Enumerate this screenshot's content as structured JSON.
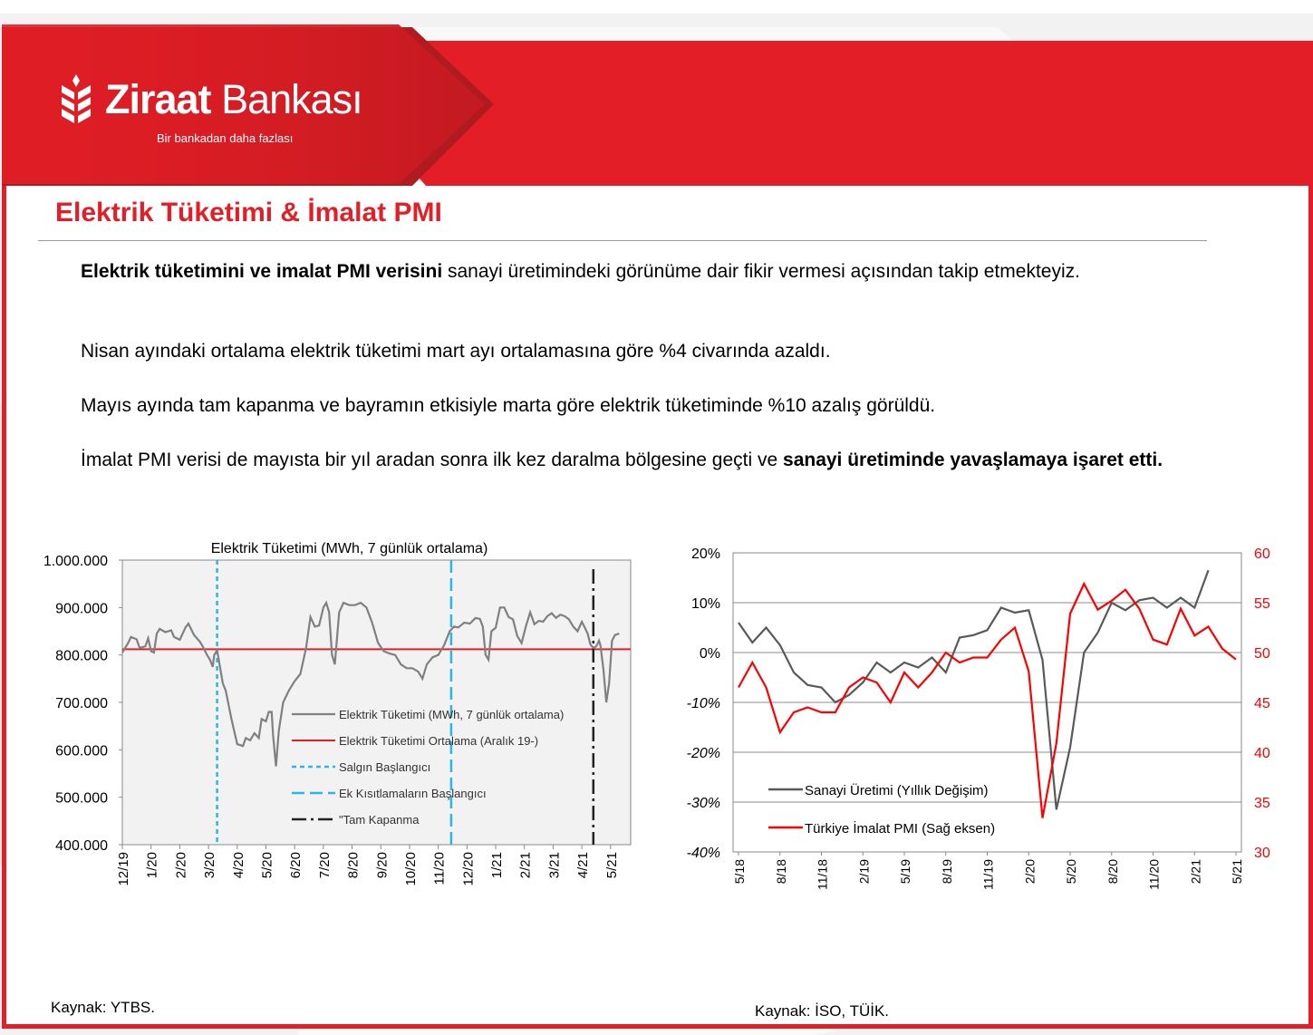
{
  "brand": {
    "name_bold": "Ziraat",
    "name_regular": "Bankası",
    "slogan": "Bir bankadan daha fazlası",
    "colors": {
      "red": "#e41e26",
      "dark_red": "#b01b20"
    }
  },
  "page_title": "Elektrik Tüketimi & İmalat PMI",
  "paragraphs": [
    {
      "bold_lead": "Elektrik tüketimini ve imalat PMI verisini",
      "text": " sanayi üretimindeki görünüme dair fikir vermesi açısından takip etmekteyiz."
    },
    {
      "text": "Nisan ayındaki ortalama elektrik tüketimi mart ayı ortalamasına göre %4 civarında azaldı."
    },
    {
      "text": "Mayıs ayında tam kapanma ve bayramın etkisiyle marta göre elektrik tüketiminde %10 azalış görüldü."
    },
    {
      "text": "İmalat PMI verisi de mayısta bir yıl aradan sonra ilk kez daralma bölgesine geçti ve ",
      "bold_tail": "sanayi üretiminde yavaşlamaya işaret etti",
      "tail": "."
    }
  ],
  "sources": {
    "left": "Kaynak: YTBS.",
    "right": "Kaynak: İSO, TÜİK."
  },
  "chart_data": [
    {
      "type": "line",
      "title": "Elektrik Tüketimi  (MWh, 7 günlük  ortalama)",
      "x_ticks": [
        "12/19",
        "1/20",
        "2/20",
        "3/20",
        "4/20",
        "5/20",
        "6/20",
        "7/20",
        "8/20",
        "9/20",
        "10/20",
        "11/20",
        "12/20",
        "1/21",
        "2/21",
        "3/21",
        "4/21",
        "5/21"
      ],
      "y_ticks": [
        "1.000.000",
        "900.000",
        "800.000",
        "700.000",
        "600.000",
        "500.000",
        "400.000"
      ],
      "ylim": [
        400000,
        1000000
      ],
      "grid": false,
      "legend_position": "center-right",
      "series": [
        {
          "name": "Elektrik Tüketimi (MWh, 7 günlük ortalama)",
          "color": "#808080",
          "points": [
            [
              0,
              805000
            ],
            [
              0.2,
              825000
            ],
            [
              0.3,
              838000
            ],
            [
              0.5,
              833000
            ],
            [
              0.6,
              815000
            ],
            [
              0.8,
              818000
            ],
            [
              0.9,
              835000
            ],
            [
              1.0,
              808000
            ],
            [
              1.1,
              805000
            ],
            [
              1.2,
              845000
            ],
            [
              1.3,
              855000
            ],
            [
              1.5,
              848000
            ],
            [
              1.7,
              852000
            ],
            [
              1.8,
              838000
            ],
            [
              2.0,
              832000
            ],
            [
              2.2,
              858000
            ],
            [
              2.3,
              866000
            ],
            [
              2.5,
              842000
            ],
            [
              2.7,
              828000
            ],
            [
              2.8,
              818000
            ],
            [
              2.95,
              800000
            ],
            [
              3.05,
              790000
            ],
            [
              3.15,
              775000
            ],
            [
              3.2,
              800000
            ],
            [
              3.3,
              810000
            ],
            [
              3.5,
              740000
            ],
            [
              3.6,
              725000
            ],
            [
              3.8,
              665000
            ],
            [
              4.0,
              612000
            ],
            [
              4.2,
              608000
            ],
            [
              4.3,
              625000
            ],
            [
              4.45,
              620000
            ],
            [
              4.6,
              635000
            ],
            [
              4.75,
              625000
            ],
            [
              4.85,
              665000
            ],
            [
              5.0,
              660000
            ],
            [
              5.1,
              680000
            ],
            [
              5.2,
              680000
            ],
            [
              5.25,
              630000
            ],
            [
              5.35,
              565000
            ],
            [
              5.45,
              640000
            ],
            [
              5.6,
              700000
            ],
            [
              5.8,
              725000
            ],
            [
              6.0,
              745000
            ],
            [
              6.2,
              760000
            ],
            [
              6.4,
              815000
            ],
            [
              6.55,
              880000
            ],
            [
              6.7,
              860000
            ],
            [
              6.85,
              862000
            ],
            [
              7.0,
              900000
            ],
            [
              7.1,
              910000
            ],
            [
              7.2,
              890000
            ],
            [
              7.3,
              800000
            ],
            [
              7.4,
              780000
            ],
            [
              7.55,
              890000
            ],
            [
              7.7,
              910000
            ],
            [
              7.9,
              905000
            ],
            [
              8.1,
              905000
            ],
            [
              8.3,
              910000
            ],
            [
              8.5,
              900000
            ],
            [
              8.7,
              868000
            ],
            [
              8.9,
              826000
            ],
            [
              9.1,
              808000
            ],
            [
              9.3,
              803000
            ],
            [
              9.5,
              800000
            ],
            [
              9.7,
              780000
            ],
            [
              9.9,
              772000
            ],
            [
              10.1,
              772000
            ],
            [
              10.3,
              765000
            ],
            [
              10.45,
              750000
            ],
            [
              10.6,
              780000
            ],
            [
              10.8,
              795000
            ],
            [
              11.0,
              800000
            ],
            [
              11.2,
              820000
            ],
            [
              11.4,
              850000
            ],
            [
              11.55,
              860000
            ],
            [
              11.7,
              858000
            ],
            [
              11.9,
              868000
            ],
            [
              12.1,
              866000
            ],
            [
              12.3,
              878000
            ],
            [
              12.45,
              876000
            ],
            [
              12.55,
              860000
            ],
            [
              12.65,
              800000
            ],
            [
              12.75,
              790000
            ],
            [
              12.85,
              850000
            ],
            [
              13.0,
              857000
            ],
            [
              13.15,
              900000
            ],
            [
              13.3,
              900000
            ],
            [
              13.45,
              880000
            ],
            [
              13.6,
              875000
            ],
            [
              13.75,
              840000
            ],
            [
              13.9,
              825000
            ],
            [
              14.05,
              860000
            ],
            [
              14.2,
              890000
            ],
            [
              14.35,
              865000
            ],
            [
              14.5,
              872000
            ],
            [
              14.65,
              870000
            ],
            [
              14.8,
              882000
            ],
            [
              14.95,
              888000
            ],
            [
              15.1,
              878000
            ],
            [
              15.25,
              885000
            ],
            [
              15.4,
              882000
            ],
            [
              15.55,
              875000
            ],
            [
              15.7,
              860000
            ],
            [
              15.85,
              850000
            ],
            [
              16.0,
              870000
            ],
            [
              16.1,
              858000
            ],
            [
              16.2,
              845000
            ],
            [
              16.3,
              822000
            ],
            [
              16.4,
              815000
            ],
            [
              16.5,
              818000
            ],
            [
              16.6,
              830000
            ],
            [
              16.65,
              820000
            ],
            [
              16.75,
              770000
            ],
            [
              16.85,
              700000
            ],
            [
              16.95,
              740000
            ],
            [
              17.05,
              830000
            ],
            [
              17.15,
              842000
            ],
            [
              17.3,
              845000
            ]
          ]
        },
        {
          "name": "Elektrik Tüketimi Ortalama (Aralık 19-)",
          "color": "#e41e26",
          "value": 812000
        },
        {
          "name": "Salgın Başlangıcı",
          "color": "#29b6e8",
          "x": 3.3
        },
        {
          "name": "Ek Kısıtlamaların Başlangıcı",
          "color": "#29b6e8",
          "x": 11.45
        },
        {
          "name": "\"Tam Kapanma",
          "color": "#222222",
          "x": 16.4
        }
      ]
    },
    {
      "type": "line",
      "title": "",
      "x_ticks": [
        "5/18",
        "8/18",
        "11/18",
        "2/19",
        "5/19",
        "8/19",
        "11/19",
        "2/20",
        "5/20",
        "8/20",
        "11/20",
        "2/21",
        "5/21"
      ],
      "y_ticks_left": [
        "20%",
        "10%",
        "0%",
        "-10%",
        "-20%",
        "-30%",
        "-40%"
      ],
      "y_ticks_right": [
        "60",
        "55",
        "50",
        "45",
        "40",
        "35",
        "30"
      ],
      "ylim_left": [
        -40,
        20
      ],
      "ylim_right": [
        30,
        60
      ],
      "grid": true,
      "legend_position": "bottom-left",
      "series": [
        {
          "name": "Sanayi Üretimi (Yıllık Değişim)",
          "axis": "left",
          "color": "#595959",
          "values": [
            6,
            2,
            5,
            1.5,
            -4,
            -6.5,
            -7,
            -10,
            -8.5,
            -6,
            -2,
            -4,
            -2,
            -3,
            -1,
            -4,
            3,
            3.5,
            4.5,
            9,
            8,
            8.5,
            -1.5,
            -31.5,
            -19,
            0,
            4,
            10,
            8.5,
            10.5,
            11,
            9,
            11,
            9,
            16.5
          ]
        },
        {
          "name": "Türkiye İmalat PMI (Sağ eksen)",
          "axis": "right",
          "color": "#ff0000",
          "values": [
            46.5,
            49,
            46.5,
            42,
            44,
            44.5,
            44,
            44,
            46.5,
            47.5,
            47,
            45,
            48,
            46.5,
            48,
            50,
            49,
            49.5,
            49.5,
            51.3,
            52.5,
            48.1,
            33.4,
            40.9,
            53.9,
            56.9,
            54.3,
            55.2,
            56.3,
            54.4,
            51.3,
            50.8,
            54.4,
            51.7,
            52.6,
            50.4,
            49.3
          ]
        }
      ]
    }
  ]
}
